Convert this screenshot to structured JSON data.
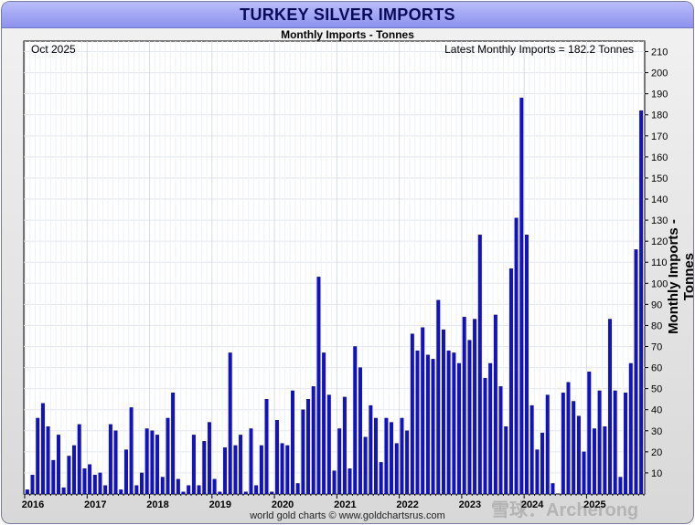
{
  "chart_data": {
    "type": "bar",
    "title": "TURKEY SILVER IMPORTS",
    "subtitle": "Monthly Imports - Tonnes",
    "ylabel": "Monthly Imports - Tonnes",
    "date_label": "Oct 2025",
    "latest_label": "Latest Monthly Imports = 182.2 Tonnes",
    "footer": "world gold charts © www.goldchartsrus.com",
    "ylim": [
      0,
      215
    ],
    "yticks": [
      10,
      20,
      30,
      40,
      50,
      60,
      70,
      80,
      90,
      100,
      110,
      120,
      130,
      140,
      150,
      160,
      170,
      180,
      190,
      200,
      210
    ],
    "start": "2016-01",
    "x_labels": [
      "2016",
      "2017",
      "2018",
      "2019",
      "2020",
      "2021",
      "2022",
      "2023",
      "2024",
      "2025"
    ],
    "grid": true,
    "bar_color": "#1111cc",
    "values": [
      2,
      9,
      36,
      43,
      32,
      16,
      28,
      3,
      18,
      23,
      33,
      12,
      14,
      9,
      10,
      4,
      33,
      30,
      2,
      21,
      41,
      4,
      10,
      31,
      30,
      28,
      8,
      36,
      48,
      7,
      1,
      4,
      28,
      4,
      25,
      34,
      7,
      1,
      22,
      67,
      23,
      28,
      1,
      31,
      4,
      23,
      45,
      1,
      35,
      24,
      23,
      49,
      5,
      40,
      45,
      51,
      103,
      67,
      47,
      11,
      31,
      46,
      12,
      70,
      60,
      27,
      42,
      36,
      15,
      36,
      34,
      24,
      36,
      30,
      76,
      68,
      79,
      66,
      64,
      92,
      78,
      68,
      67,
      62,
      84,
      73,
      83,
      123,
      55,
      62,
      85,
      51,
      32,
      107,
      131,
      188,
      123,
      42,
      21,
      29,
      47,
      5,
      0,
      48,
      53,
      44,
      37,
      20,
      58,
      31,
      49,
      32,
      83,
      49,
      8,
      48,
      62,
      116,
      182
    ],
    "watermark": "雪球：Archerong"
  }
}
